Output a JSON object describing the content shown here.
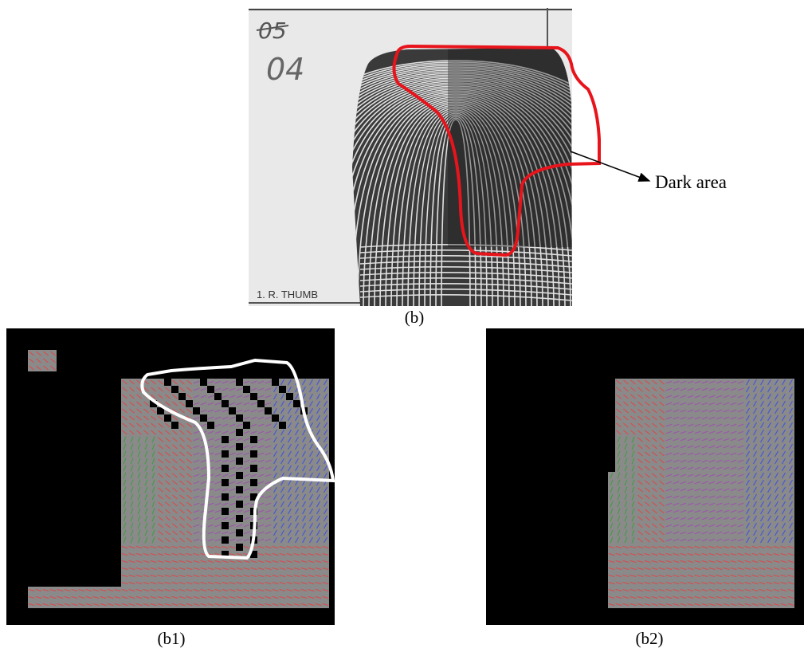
{
  "figure": {
    "panel_top": {
      "caption": "(b)",
      "handwritten_marks": [
        "05",
        "04"
      ],
      "card_label": "1. R. THUMB"
    },
    "panel_left": {
      "caption": "(b1)"
    },
    "panel_right": {
      "caption": "(b2)"
    },
    "annotation": {
      "label": "Dark area"
    },
    "colors": {
      "highlight_outline_top": "#e8141c",
      "highlight_outline_left": "#ffffff",
      "field_background": "#000000",
      "field_gray": "#8a8a8a",
      "orientation_red": "#d25050",
      "orientation_green": "#4a9a4a",
      "orientation_blue": "#4a5ad2",
      "orientation_purple": "#9a5aa8"
    }
  }
}
